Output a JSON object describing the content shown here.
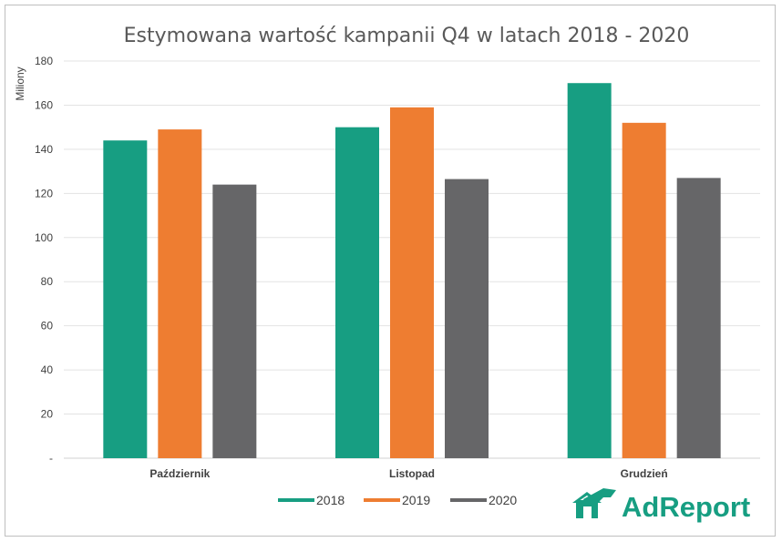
{
  "chart_data": {
    "type": "bar",
    "title": "Estymowana wartość kampanii Q4 w latach 2018 - 2020",
    "ylabel": "Miliony",
    "xlabel": "",
    "categories": [
      "Październik",
      "Listopad",
      "Grudzień"
    ],
    "series": [
      {
        "name": "2018",
        "color": "#179e82",
        "values": [
          144,
          150,
          170
        ]
      },
      {
        "name": "2019",
        "color": "#ee7d31",
        "values": [
          149,
          159,
          152
        ]
      },
      {
        "name": "2020",
        "color": "#666668",
        "values": [
          124,
          126.5,
          127
        ]
      }
    ],
    "ylim": [
      0,
      180
    ],
    "yticks": [
      0,
      20,
      40,
      60,
      80,
      100,
      120,
      140,
      160,
      180
    ],
    "ytick_labels": [
      "-",
      "20",
      "40",
      "60",
      "80",
      "100",
      "120",
      "140",
      "160",
      "180"
    ],
    "grid": true,
    "legend": "bottom-center"
  },
  "logo": {
    "text": "AdReport",
    "color": "#179e82"
  }
}
